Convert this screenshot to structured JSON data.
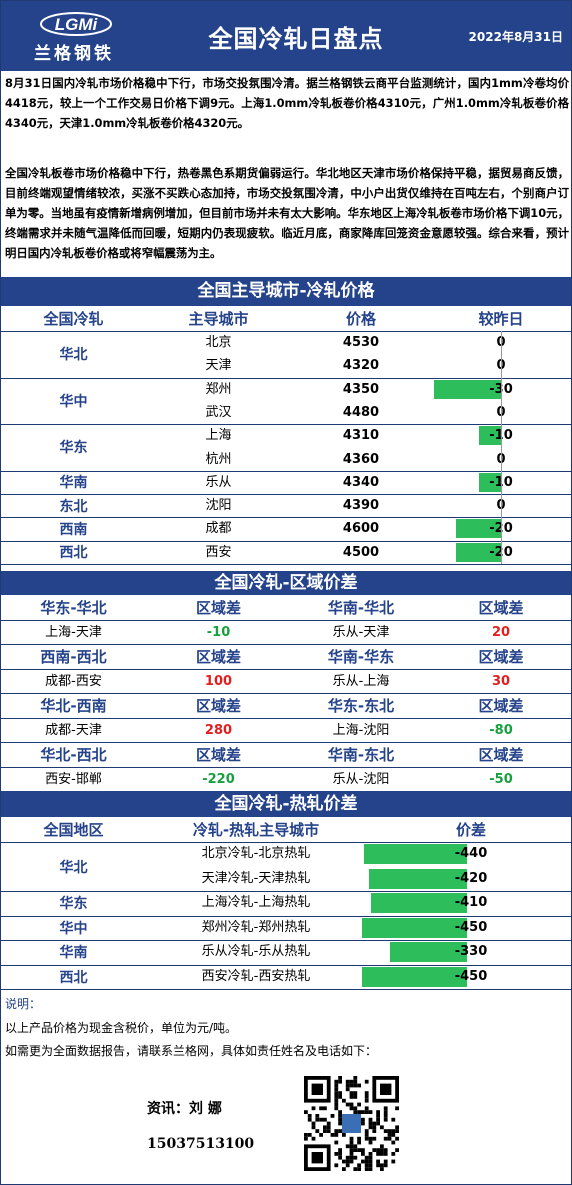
{
  "header": {
    "logo_text": "LGMi",
    "logo_cn": "兰格钢铁",
    "title": "全国冷轧日盘点",
    "date": "2022年8月31日"
  },
  "summary": {
    "p1": "8月31日国内冷轧市场价格稳中下行，市场交投氛围冷清。据兰格钢铁云商平台监测统计，国内1mm冷卷均价4418元，较上一个工作交易日价格下调9元。上海1.0mm冷轧板卷价格4310元，广州1.0mm冷轧板卷价格4340元，天津1.0mm冷轧板卷价格4320元。",
    "p2": "全国冷轧板卷市场价格稳中下行，热卷黑色系期货偏弱运行。华北地区天津市场价格保持平稳，据贸易商反馈，目前终端观望情绪较浓，买涨不买跌心态加持，市场交投氛围冷清，中小户出货仅维持在百吨左右，个别商户订单为零。当地虽有疫情新增病例增加，但目前市场并未有太大影响。华东地区上海冷轧板卷市场价格下调10元，终端需求并未随气温降低而回暖，短期内仍表现疲软。临近月底，商家降库回笼资金意愿较强。综合来看，预计明日国内冷轧板卷价格或将窄幅震荡为主。"
  },
  "section1": {
    "title": "全国主导城市-冷轧价格",
    "headers": [
      "全国冷轧",
      "主导城市",
      "价格",
      "较昨日"
    ],
    "groups": [
      {
        "region": "华北",
        "rows": [
          {
            "city": "北京",
            "price": "4530",
            "change": 0
          },
          {
            "city": "天津",
            "price": "4320",
            "change": 0
          }
        ]
      },
      {
        "region": "华中",
        "rows": [
          {
            "city": "郑州",
            "price": "4350",
            "change": -30
          },
          {
            "city": "武汉",
            "price": "4480",
            "change": 0
          }
        ]
      },
      {
        "region": "华东",
        "rows": [
          {
            "city": "上海",
            "price": "4310",
            "change": -10
          },
          {
            "city": "杭州",
            "price": "4360",
            "change": 0
          }
        ]
      },
      {
        "region": "华南",
        "rows": [
          {
            "city": "乐从",
            "price": "4340",
            "change": -10
          }
        ]
      },
      {
        "region": "东北",
        "rows": [
          {
            "city": "沈阳",
            "price": "4390",
            "change": 0
          }
        ]
      },
      {
        "region": "西南",
        "rows": [
          {
            "city": "成都",
            "price": "4600",
            "change": -20
          }
        ]
      },
      {
        "region": "西北",
        "rows": [
          {
            "city": "西安",
            "price": "4500",
            "change": -20
          }
        ]
      }
    ]
  },
  "section2": {
    "title": "全国冷轧-区域价差",
    "diff_label": "区域差",
    "blocks": [
      {
        "left": {
          "head": "华东-华北",
          "pair": "上海-天津",
          "value": "-10",
          "tone": "green"
        },
        "right": {
          "head": "华南-华北",
          "pair": "乐从-天津",
          "value": "20",
          "tone": "red"
        }
      },
      {
        "left": {
          "head": "西南-西北",
          "pair": "成都-西安",
          "value": "100",
          "tone": "red"
        },
        "right": {
          "head": "华南-华东",
          "pair": "乐从-上海",
          "value": "30",
          "tone": "red"
        }
      },
      {
        "left": {
          "head": "华北-西南",
          "pair": "成都-天津",
          "value": "280",
          "tone": "red"
        },
        "right": {
          "head": "华东-东北",
          "pair": "上海-沈阳",
          "value": "-80",
          "tone": "green"
        }
      },
      {
        "left": {
          "head": "华北-西北",
          "pair": "西安-邯郸",
          "value": "-220",
          "tone": "green"
        },
        "right": {
          "head": "华南-东北",
          "pair": "乐从-沈阳",
          "value": "-50",
          "tone": "green"
        }
      }
    ]
  },
  "section3": {
    "title": "全国冷轧-热轧价差",
    "headers": [
      "全国地区",
      "冷轧-热轧主导城市",
      "价差"
    ],
    "groups": [
      {
        "region": "华北",
        "rows": [
          {
            "pair": "北京冷轧-北京热轧",
            "value": -440
          },
          {
            "pair": "天津冷轧-天津热轧",
            "value": -420
          }
        ]
      },
      {
        "region": "华东",
        "rows": [
          {
            "pair": "上海冷轧-上海热轧",
            "value": -410
          }
        ]
      },
      {
        "region": "华中",
        "rows": [
          {
            "pair": "郑州冷轧-郑州热轧",
            "value": -450
          }
        ]
      },
      {
        "region": "华南",
        "rows": [
          {
            "pair": "乐从冷轧-乐从热轧",
            "value": -330
          }
        ]
      },
      {
        "region": "西北",
        "rows": [
          {
            "pair": "西安冷轧-西安热轧",
            "value": -450
          }
        ]
      }
    ]
  },
  "footer": {
    "note_title": "说明：",
    "line1": "以上产品价格为现金含税价，单位为元/吨。",
    "line2": "如需更为全面数据报告，请联系兰格网，具体如责任姓名及电话如下：",
    "contact_name": "资讯：刘 娜",
    "contact_phone": "15037513100"
  },
  "colors": {
    "brand": "#25438a",
    "bar": "#2dbd5a",
    "up": "#e02020",
    "down": "#18a040"
  }
}
